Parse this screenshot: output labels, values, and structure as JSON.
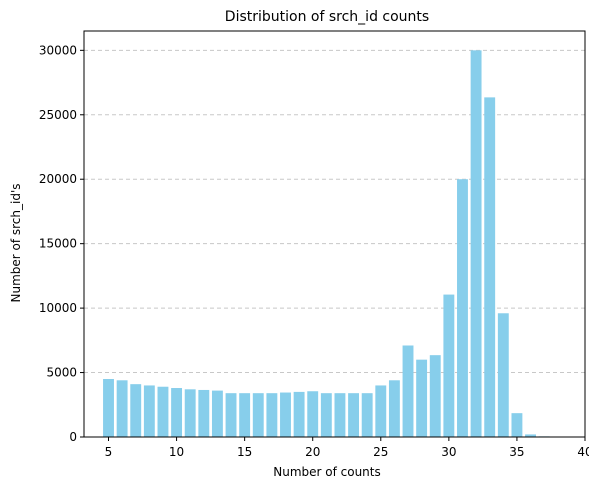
{
  "chart_data": {
    "type": "bar",
    "title": "Distribution of srch_id counts",
    "xlabel": "Number of counts",
    "ylabel": "Number of srch_id's",
    "x": [
      5,
      6,
      7,
      8,
      9,
      10,
      11,
      12,
      13,
      14,
      15,
      16,
      17,
      18,
      19,
      20,
      21,
      22,
      23,
      24,
      25,
      26,
      27,
      28,
      29,
      30,
      31,
      32,
      33,
      34,
      35,
      36,
      37,
      38
    ],
    "values": [
      4500,
      4400,
      4100,
      4000,
      3900,
      3800,
      3700,
      3650,
      3600,
      3400,
      3400,
      3400,
      3400,
      3450,
      3500,
      3550,
      3400,
      3400,
      3400,
      3400,
      4000,
      4400,
      7100,
      6000,
      6350,
      11050,
      20000,
      30000,
      26350,
      9600,
      1850,
      200,
      50,
      0
    ],
    "xlim": [
      3.2,
      40.0
    ],
    "ylim": [
      0,
      31500
    ],
    "xticks": [
      5,
      10,
      15,
      20,
      25,
      30,
      35,
      40
    ],
    "yticks": [
      0,
      5000,
      10000,
      15000,
      20000,
      25000,
      30000
    ],
    "bar_color": "#87ceeb",
    "grid": "y-dashed",
    "grid_color": "#c8c8c8"
  }
}
